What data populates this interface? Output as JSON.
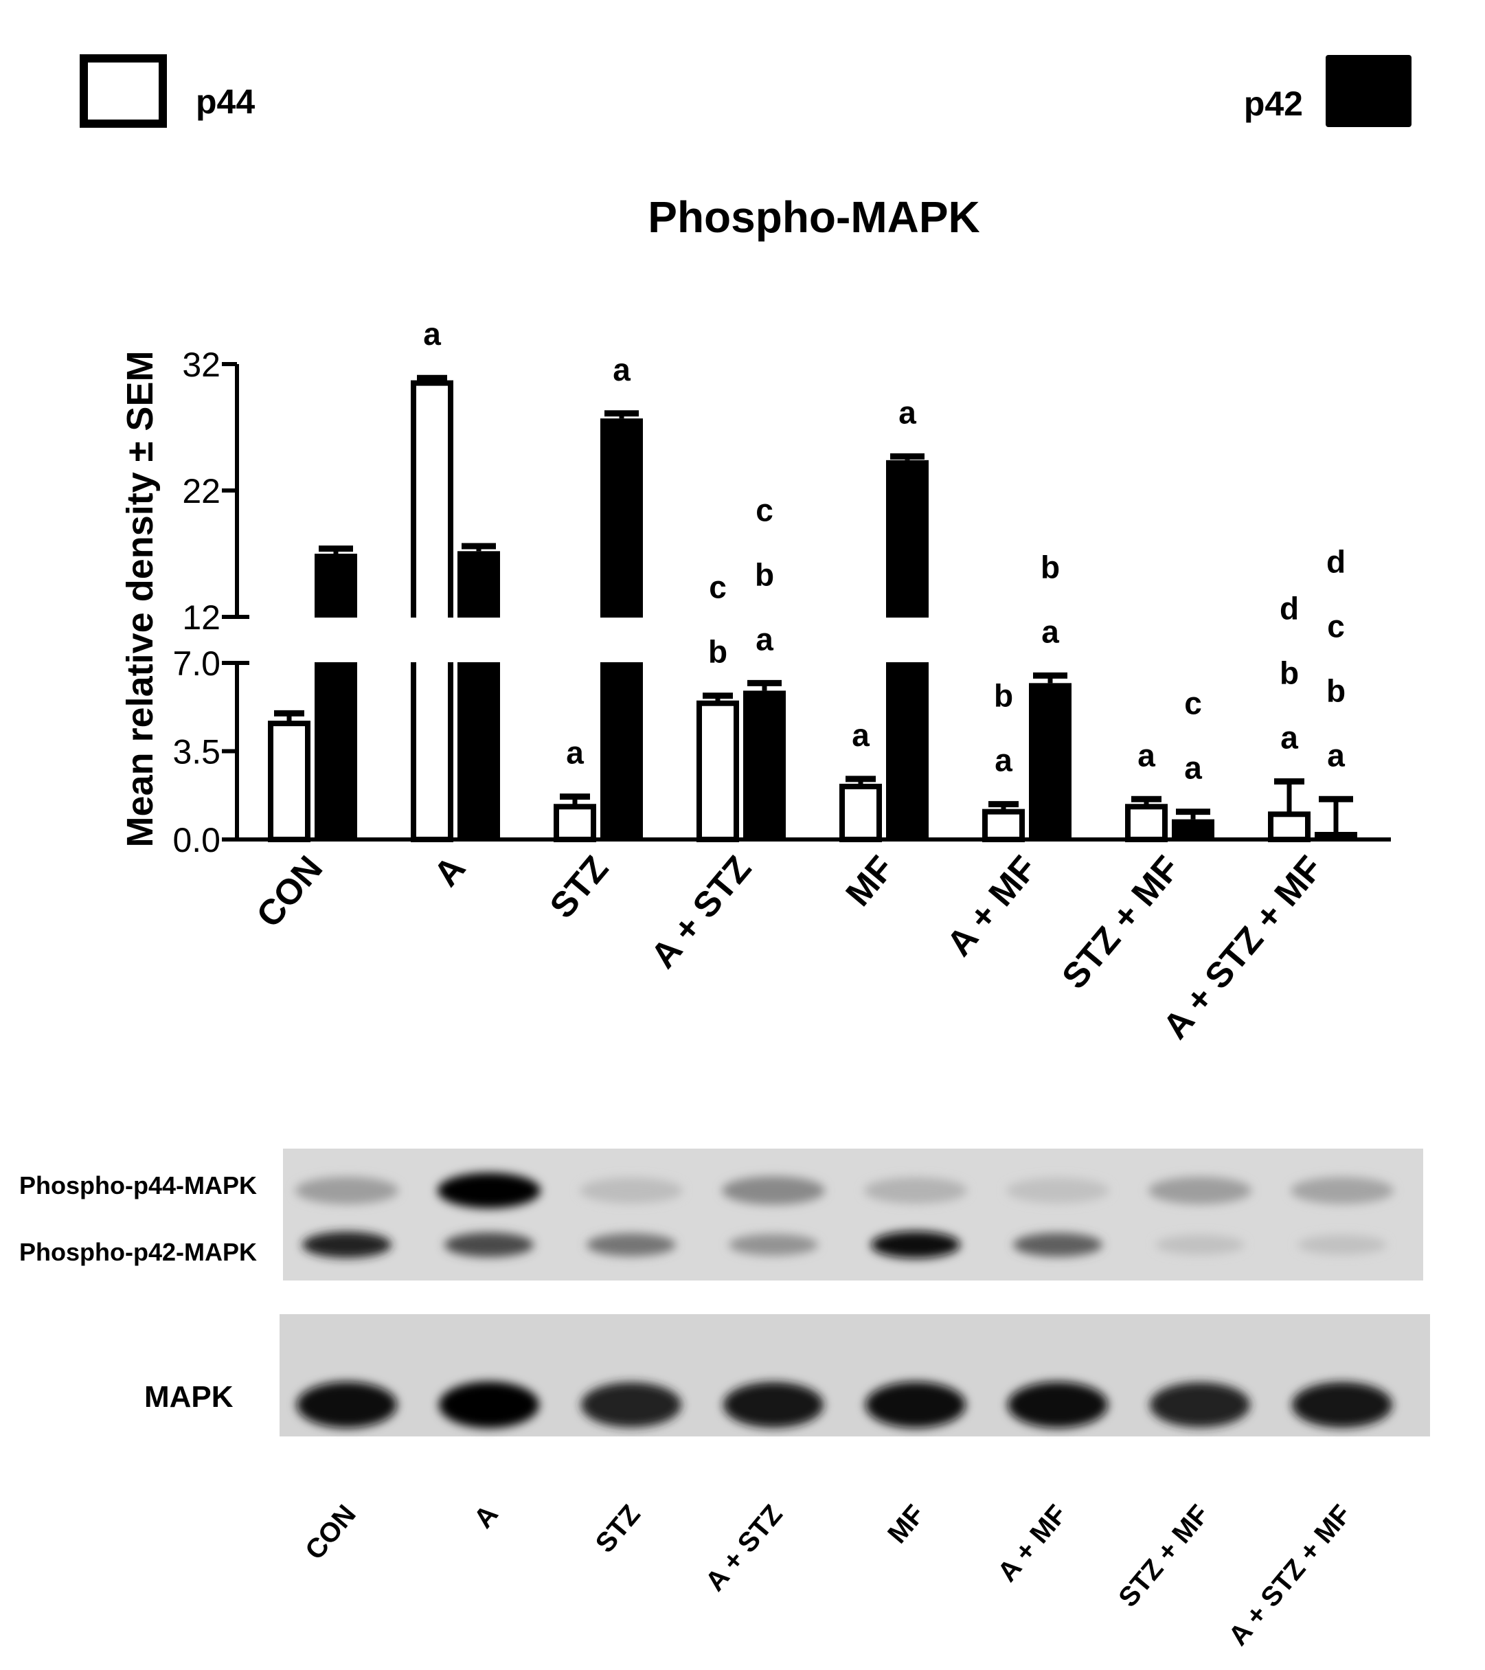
{
  "legend": {
    "open_label": "p44",
    "filled_label": "p42",
    "open_fill": "#ffffff",
    "filled_fill": "#000000"
  },
  "chart_data": {
    "type": "bar",
    "title": "Phospho-MAPK",
    "xlabel": "",
    "ylabel": "Mean relative density ± SEM",
    "categories": [
      "CON",
      "A",
      "STZ",
      "A + STZ",
      "MF",
      "A + MF",
      "STZ + MF",
      "A + STZ + MF"
    ],
    "series": [
      {
        "name": "p44",
        "color": "#ffffff",
        "values": [
          4.6,
          30.5,
          1.3,
          5.4,
          2.1,
          1.1,
          1.3,
          1.0
        ],
        "sem": [
          0.4,
          0.4,
          0.4,
          0.3,
          0.3,
          0.3,
          0.3,
          1.3
        ],
        "letters": [
          [],
          [
            "a"
          ],
          [
            "a"
          ],
          [
            "b",
            "c"
          ],
          [
            "a"
          ],
          [
            "a",
            "b"
          ],
          [
            "a"
          ],
          [
            "a",
            "b",
            "d"
          ]
        ]
      },
      {
        "name": "p42",
        "color": "#000000",
        "values": [
          17.0,
          17.2,
          27.7,
          5.9,
          24.4,
          6.2,
          0.8,
          0.3
        ],
        "sem": [
          0.4,
          0.4,
          0.4,
          0.3,
          0.3,
          0.3,
          0.3,
          1.3
        ],
        "letters": [
          [],
          [],
          [
            "a"
          ],
          [
            "a",
            "b",
            "c"
          ],
          [
            "a"
          ],
          [
            "a",
            "b"
          ],
          [
            "a",
            "c"
          ],
          [
            "a",
            "b",
            "c",
            "d"
          ]
        ]
      }
    ],
    "axis_break": {
      "lower": {
        "range": [
          0,
          7.0
        ],
        "ticks": [
          "0.0",
          "3.5",
          "7.0"
        ]
      },
      "upper": {
        "range": [
          12,
          32
        ],
        "ticks": [
          "12",
          "22",
          "32"
        ]
      }
    },
    "grid": false,
    "legend_position": "top, split left and right"
  },
  "blot": {
    "phospho_labels": [
      "Phospho-p44-MAPK",
      "Phospho-p42-MAPK"
    ],
    "total_label": "MAPK",
    "lanes": [
      "CON",
      "A",
      "STZ",
      "A + STZ",
      "MF",
      "A + MF",
      "STZ + MF",
      "A + STZ + MF"
    ],
    "p44_intensity": [
      0.25,
      1.0,
      0.1,
      0.35,
      0.15,
      0.08,
      0.25,
      0.22
    ],
    "p42_intensity": [
      0.85,
      0.65,
      0.45,
      0.3,
      0.95,
      0.55,
      0.08,
      0.08
    ],
    "mapk_intensity": [
      0.95,
      1.0,
      0.85,
      0.9,
      0.95,
      0.95,
      0.85,
      0.9
    ]
  }
}
